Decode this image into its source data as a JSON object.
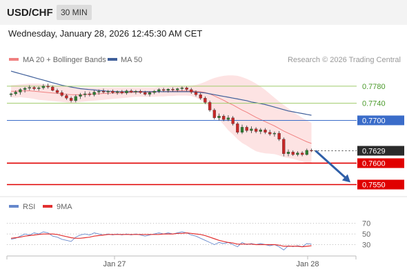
{
  "header": {
    "symbol": "USD/CHF",
    "timeframe": "30 MIN"
  },
  "date": "Wednesday, January 28, 2026 12:45:30 AM CET",
  "legend": {
    "bb": "MA 20 + Bollinger Bands",
    "ma50": "MA 50",
    "credit": "Research © 2026 Trading Central"
  },
  "rsi_legend": {
    "rsi": "RSI",
    "ma": "9MA"
  },
  "colors": {
    "up": "#2e7d32",
    "down": "#c62828",
    "bb_fill": "#fde3e3",
    "bb_line": "#f08080",
    "ma50": "#3f5f9a",
    "support": "#e00000",
    "resistance_current": "#3a6cc9",
    "green_level": "#9ecb6a",
    "arrow": "#2f5fa8",
    "rsi": "#6688cc",
    "rsi_ma": "#e23030"
  },
  "chart_data": [
    {
      "type": "candlestick",
      "title": "USD/CHF 30 MIN",
      "ylim": [
        0.7525,
        0.782
      ],
      "x_tick_labels": [
        "Jan 27",
        "Jan 28"
      ],
      "levels": [
        {
          "value": 0.778,
          "label": "0.7780",
          "kind": "resistance"
        },
        {
          "value": 0.774,
          "label": "0.7740",
          "kind": "resistance"
        },
        {
          "value": 0.77,
          "label": "0.7700",
          "kind": "pivot"
        },
        {
          "value": 0.7629,
          "label": "0.7629",
          "kind": "last"
        },
        {
          "value": 0.76,
          "label": "0.7600",
          "kind": "support"
        },
        {
          "value": 0.755,
          "label": "0.7550",
          "kind": "support"
        }
      ],
      "candles": [
        [
          0.776,
          0.7765,
          0.7755,
          0.7762
        ],
        [
          0.7762,
          0.777,
          0.7758,
          0.7766
        ],
        [
          0.7766,
          0.7775,
          0.776,
          0.7772
        ],
        [
          0.7772,
          0.7778,
          0.7765,
          0.7775
        ],
        [
          0.7775,
          0.7782,
          0.777,
          0.7777
        ],
        [
          0.7777,
          0.778,
          0.777,
          0.7774
        ],
        [
          0.7774,
          0.7779,
          0.7769,
          0.7776
        ],
        [
          0.7776,
          0.7785,
          0.7772,
          0.778
        ],
        [
          0.778,
          0.7786,
          0.7774,
          0.7778
        ],
        [
          0.7778,
          0.7781,
          0.7768,
          0.777
        ],
        [
          0.777,
          0.7774,
          0.7762,
          0.7765
        ],
        [
          0.7765,
          0.777,
          0.7755,
          0.7758
        ],
        [
          0.7758,
          0.7762,
          0.7748,
          0.7752
        ],
        [
          0.7752,
          0.7756,
          0.7742,
          0.7746
        ],
        [
          0.7746,
          0.776,
          0.7742,
          0.7756
        ],
        [
          0.7756,
          0.7764,
          0.775,
          0.776
        ],
        [
          0.776,
          0.7768,
          0.7754,
          0.7762
        ],
        [
          0.7762,
          0.7767,
          0.7756,
          0.776
        ],
        [
          0.776,
          0.777,
          0.7756,
          0.7766
        ],
        [
          0.7766,
          0.7772,
          0.776,
          0.7768
        ],
        [
          0.7768,
          0.7774,
          0.7763,
          0.7766
        ],
        [
          0.7766,
          0.7771,
          0.776,
          0.7768
        ],
        [
          0.7768,
          0.7772,
          0.7762,
          0.7765
        ],
        [
          0.7765,
          0.777,
          0.776,
          0.7767
        ],
        [
          0.7767,
          0.7771,
          0.7761,
          0.7764
        ],
        [
          0.7764,
          0.7772,
          0.776,
          0.7769
        ],
        [
          0.7769,
          0.7773,
          0.7764,
          0.7766
        ],
        [
          0.7766,
          0.7771,
          0.7761,
          0.7768
        ],
        [
          0.7768,
          0.7772,
          0.7762,
          0.7765
        ],
        [
          0.7765,
          0.7769,
          0.7758,
          0.7761
        ],
        [
          0.7761,
          0.7768,
          0.7756,
          0.7765
        ],
        [
          0.7765,
          0.7771,
          0.7761,
          0.7768
        ],
        [
          0.7768,
          0.7775,
          0.7764,
          0.7772
        ],
        [
          0.7772,
          0.7776,
          0.7766,
          0.777
        ],
        [
          0.777,
          0.7775,
          0.7765,
          0.7773
        ],
        [
          0.7773,
          0.7777,
          0.7767,
          0.7771
        ],
        [
          0.7771,
          0.7776,
          0.7766,
          0.7774
        ],
        [
          0.7774,
          0.7779,
          0.7769,
          0.7776
        ],
        [
          0.7776,
          0.7779,
          0.7768,
          0.7772
        ],
        [
          0.7772,
          0.7776,
          0.7762,
          0.7766
        ],
        [
          0.7766,
          0.777,
          0.7756,
          0.776
        ],
        [
          0.776,
          0.7764,
          0.7748,
          0.7752
        ],
        [
          0.7752,
          0.7756,
          0.7738,
          0.7742
        ],
        [
          0.7742,
          0.7746,
          0.772,
          0.7724
        ],
        [
          0.7724,
          0.7728,
          0.7702,
          0.7706
        ],
        [
          0.7706,
          0.7716,
          0.77,
          0.771
        ],
        [
          0.771,
          0.7714,
          0.7698,
          0.7702
        ],
        [
          0.7702,
          0.7712,
          0.7698,
          0.7706
        ],
        [
          0.7706,
          0.771,
          0.7688,
          0.7692
        ],
        [
          0.7692,
          0.7696,
          0.7668,
          0.7672
        ],
        [
          0.7672,
          0.769,
          0.7668,
          0.7684
        ],
        [
          0.7684,
          0.7688,
          0.7672,
          0.7676
        ],
        [
          0.7676,
          0.7686,
          0.767,
          0.768
        ],
        [
          0.768,
          0.7684,
          0.767,
          0.7674
        ],
        [
          0.7674,
          0.7682,
          0.7668,
          0.7678
        ],
        [
          0.7678,
          0.7682,
          0.7668,
          0.7672
        ],
        [
          0.7672,
          0.7678,
          0.7664,
          0.7668
        ],
        [
          0.7668,
          0.7674,
          0.7662,
          0.767
        ],
        [
          0.767,
          0.7675,
          0.7652,
          0.7656
        ],
        [
          0.7656,
          0.766,
          0.7616,
          0.7622
        ],
        [
          0.7622,
          0.7632,
          0.7616,
          0.7626
        ],
        [
          0.7626,
          0.763,
          0.7617,
          0.762
        ],
        [
          0.762,
          0.7628,
          0.7616,
          0.7624
        ],
        [
          0.7624,
          0.7628,
          0.7616,
          0.762
        ],
        [
          0.762,
          0.7634,
          0.7618,
          0.763
        ],
        [
          0.763,
          0.7634,
          0.7626,
          0.7629
        ]
      ],
      "ma20": [
        0.7768,
        0.7768,
        0.7769,
        0.7769,
        0.7769,
        0.7768,
        0.7767,
        0.7766,
        0.7765,
        0.7764,
        0.7763,
        0.7762,
        0.7761,
        0.776,
        0.776,
        0.776,
        0.776,
        0.7761,
        0.7762,
        0.7762,
        0.7763,
        0.7763,
        0.7764,
        0.7764,
        0.7764,
        0.7765,
        0.7765,
        0.7766,
        0.7766,
        0.7766,
        0.7766,
        0.7766,
        0.7767,
        0.7767,
        0.7768,
        0.7768,
        0.7769,
        0.7769,
        0.7769,
        0.7769,
        0.7768,
        0.7767,
        0.7765,
        0.7762,
        0.7757,
        0.7752,
        0.7747,
        0.7741,
        0.7736,
        0.773,
        0.7724,
        0.7719,
        0.7713,
        0.7707,
        0.7702,
        0.7697,
        0.7692,
        0.7687,
        0.7681,
        0.7675,
        0.767,
        0.7665,
        0.766,
        0.7655,
        0.765,
        0.7646
      ],
      "bb_upper": [
        0.7782,
        0.7783,
        0.7784,
        0.7785,
        0.7786,
        0.7786,
        0.7786,
        0.7785,
        0.7784,
        0.7783,
        0.7782,
        0.7781,
        0.778,
        0.7779,
        0.7778,
        0.7777,
        0.7777,
        0.7777,
        0.7777,
        0.7777,
        0.7777,
        0.7777,
        0.7777,
        0.7777,
        0.7777,
        0.7777,
        0.7777,
        0.7777,
        0.7777,
        0.7777,
        0.7777,
        0.7777,
        0.7778,
        0.7778,
        0.7778,
        0.7779,
        0.7779,
        0.778,
        0.778,
        0.7781,
        0.7783,
        0.7786,
        0.779,
        0.7795,
        0.7799,
        0.7802,
        0.7804,
        0.7805,
        0.7805,
        0.7804,
        0.7801,
        0.7797,
        0.7792,
        0.7786,
        0.7779,
        0.7771,
        0.7762,
        0.7753,
        0.7744,
        0.7736,
        0.7728,
        0.772,
        0.7713,
        0.7706,
        0.77,
        0.7694
      ],
      "bb_lower": [
        0.7754,
        0.7753,
        0.7754,
        0.7753,
        0.7752,
        0.775,
        0.7748,
        0.7747,
        0.7746,
        0.7745,
        0.7744,
        0.7743,
        0.7742,
        0.7741,
        0.7742,
        0.7743,
        0.7744,
        0.7745,
        0.7746,
        0.7747,
        0.7748,
        0.7749,
        0.775,
        0.7751,
        0.7752,
        0.7753,
        0.7754,
        0.7755,
        0.7755,
        0.7755,
        0.7755,
        0.7755,
        0.7756,
        0.7756,
        0.7757,
        0.7757,
        0.7758,
        0.7758,
        0.7758,
        0.7757,
        0.7753,
        0.7748,
        0.774,
        0.7729,
        0.7715,
        0.7702,
        0.769,
        0.7677,
        0.7667,
        0.7656,
        0.7647,
        0.7641,
        0.7634,
        0.7628,
        0.7625,
        0.7623,
        0.7622,
        0.7621,
        0.7618,
        0.7614,
        0.7612,
        0.761,
        0.7607,
        0.7604,
        0.76,
        0.7598
      ],
      "ma50": [
        0.7815,
        0.7812,
        0.7809,
        0.7806,
        0.7803,
        0.78,
        0.7797,
        0.7794,
        0.7791,
        0.7788,
        0.7785,
        0.7782,
        0.778,
        0.7778,
        0.7776,
        0.7774,
        0.7773,
        0.7772,
        0.7771,
        0.777,
        0.7769,
        0.7768,
        0.7768,
        0.7767,
        0.7767,
        0.7767,
        0.7767,
        0.7767,
        0.7767,
        0.7767,
        0.7767,
        0.7767,
        0.7767,
        0.7767,
        0.7767,
        0.7767,
        0.7767,
        0.7767,
        0.7767,
        0.7767,
        0.7766,
        0.7765,
        0.7764,
        0.7762,
        0.776,
        0.7758,
        0.7756,
        0.7754,
        0.7752,
        0.775,
        0.7748,
        0.7746,
        0.7743,
        0.7741,
        0.7739,
        0.7737,
        0.7734,
        0.7731,
        0.7728,
        0.7725,
        0.7722,
        0.772,
        0.7718,
        0.7716,
        0.7714,
        0.7712
      ],
      "forecast_arrow": {
        "from": 0.7629,
        "to": 0.7555
      }
    },
    {
      "type": "line",
      "title": "RSI",
      "ylim": [
        10,
        85
      ],
      "y_tick_labels": [
        "70",
        "50",
        "30"
      ],
      "y_ticks": [
        70,
        50,
        30
      ],
      "series": [
        {
          "name": "RSI",
          "values": [
            40,
            42,
            46,
            50,
            48,
            52,
            50,
            54,
            52,
            46,
            44,
            40,
            38,
            36,
            44,
            48,
            50,
            48,
            52,
            50,
            48,
            50,
            48,
            50,
            48,
            50,
            48,
            50,
            48,
            46,
            48,
            50,
            52,
            50,
            52,
            50,
            52,
            54,
            52,
            48,
            46,
            42,
            38,
            34,
            30,
            34,
            32,
            34,
            30,
            26,
            34,
            30,
            32,
            30,
            32,
            30,
            28,
            30,
            26,
            20,
            28,
            26,
            28,
            26,
            32,
            31
          ]
        },
        {
          "name": "9MA",
          "values": [
            42,
            43,
            44,
            46,
            47,
            48,
            49,
            50,
            50,
            50,
            49,
            47,
            45,
            43,
            42,
            42,
            43,
            44,
            46,
            47,
            48,
            49,
            49,
            49,
            49,
            49,
            49,
            49,
            49,
            49,
            49,
            49,
            49,
            50,
            50,
            50,
            51,
            51,
            52,
            51,
            50,
            49,
            47,
            44,
            41,
            38,
            36,
            34,
            33,
            31,
            31,
            31,
            31,
            30,
            30,
            30,
            30,
            30,
            29,
            27,
            27,
            27,
            27,
            26,
            27,
            28
          ]
        }
      ]
    }
  ]
}
